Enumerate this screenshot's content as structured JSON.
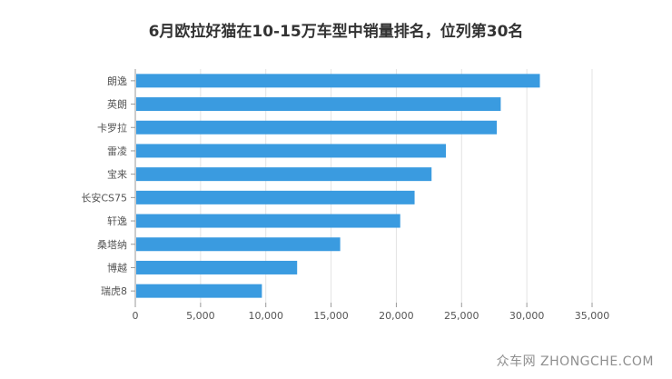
{
  "chart_data": {
    "type": "bar",
    "orientation": "horizontal",
    "title": "6月欧拉好猫在10-15万车型中销量排名，位列第30名",
    "categories": [
      "朗逸",
      "英朗",
      "卡罗拉",
      "雷凌",
      "宝来",
      "长安CS75",
      "轩逸",
      "桑塔纳",
      "博越",
      "瑞虎8"
    ],
    "values": [
      31000,
      28000,
      27700,
      23800,
      22700,
      21400,
      20300,
      15700,
      12400,
      9700
    ],
    "xlim": [
      0,
      35000
    ],
    "xticks": [
      0,
      5000,
      10000,
      15000,
      20000,
      25000,
      30000,
      35000
    ],
    "xtick_labels": [
      "0",
      "5,000",
      "10,000",
      "15,000",
      "20,000",
      "25,000",
      "30,000",
      "35,000"
    ],
    "grid": true,
    "bar_color": "#3a9be0"
  },
  "watermark": "众车网 ZHONGCHE.COM"
}
